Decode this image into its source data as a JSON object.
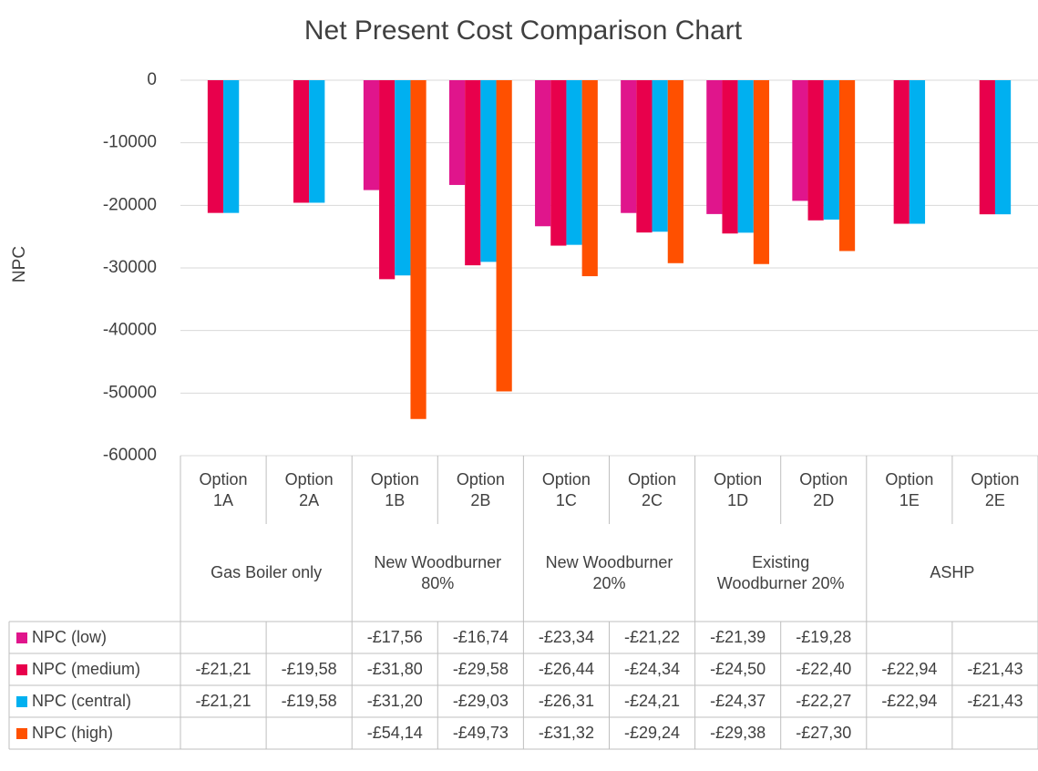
{
  "chart_data": {
    "type": "bar",
    "title": "Net Present Cost Comparison Chart",
    "y_label": "NPC",
    "categories": [
      "Option 1A",
      "Option 2A",
      "Option 1B",
      "Option 2B",
      "Option 1C",
      "Option 2C",
      "Option 1D",
      "Option 2D",
      "Option 1E",
      "Option 2E"
    ],
    "groups": [
      {
        "label": "Gas Boiler only",
        "span": 2
      },
      {
        "label": "New Woodburner 80%",
        "span": 2
      },
      {
        "label": "New Woodburner 20%",
        "span": 2
      },
      {
        "label": "Existing Woodburner 20%",
        "span": 2
      },
      {
        "label": "ASHP",
        "span": 2
      }
    ],
    "series": [
      {
        "name": "NPC (low)",
        "color": "#e0158c",
        "values": [
          null,
          null,
          -17560,
          -16740,
          -23340,
          -21220,
          -21390,
          -19280,
          null,
          null
        ],
        "value_labels": [
          null,
          null,
          "-£17,56",
          "-£16,74",
          "-£23,34",
          "-£21,22",
          "-£21,39",
          "-£19,28",
          null,
          null
        ]
      },
      {
        "name": "NPC (medium)",
        "color": "#e8004c",
        "values": [
          -21210,
          -19580,
          -31800,
          -29580,
          -26440,
          -24340,
          -24500,
          -22400,
          -22940,
          -21430
        ],
        "value_labels": [
          "-£21,21",
          "-£19,58",
          "-£31,80",
          "-£29,58",
          "-£26,44",
          "-£24,34",
          "-£24,50",
          "-£22,40",
          "-£22,94",
          "-£21,43"
        ]
      },
      {
        "name": "NPC (central)",
        "color": "#00b0f0",
        "values": [
          -21210,
          -19580,
          -31200,
          -29030,
          -26310,
          -24210,
          -24370,
          -22270,
          -22940,
          -21430
        ],
        "value_labels": [
          "-£21,21",
          "-£19,58",
          "-£31,20",
          "-£29,03",
          "-£26,31",
          "-£24,21",
          "-£24,37",
          "-£22,27",
          "-£22,94",
          "-£21,43"
        ]
      },
      {
        "name": "NPC (high)",
        "color": "#ff5000",
        "values": [
          null,
          null,
          -54140,
          -49730,
          -31320,
          -29240,
          -29380,
          -27300,
          null,
          null
        ],
        "value_labels": [
          null,
          null,
          "-£54,14",
          "-£49,73",
          "-£31,32",
          "-£29,24",
          "-£29,38",
          "-£27,30",
          null,
          null
        ]
      }
    ],
    "ylim": [
      -60000,
      0
    ],
    "yticks": [
      0,
      -10000,
      -20000,
      -30000,
      -40000,
      -50000,
      -60000
    ],
    "grid": true
  }
}
